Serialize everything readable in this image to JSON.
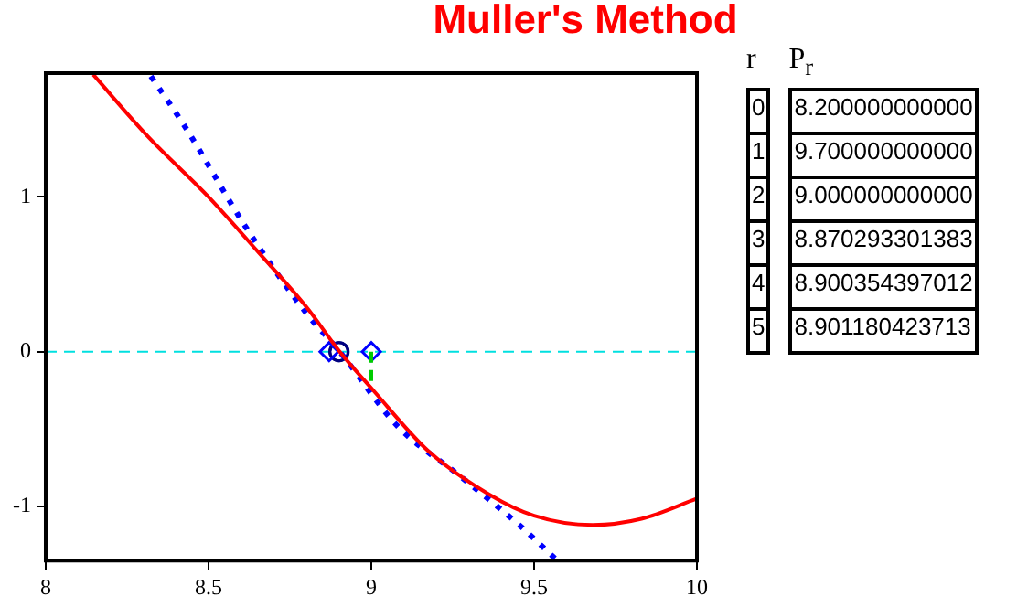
{
  "chart_data": {
    "type": "line",
    "title": "Muller's Method",
    "xlim": [
      8,
      10
    ],
    "ylim": [
      -1.35,
      1.8
    ],
    "xticks": [
      8,
      8.5,
      9,
      9.5,
      10
    ],
    "yticks": [
      -1,
      0,
      1
    ],
    "grid": false,
    "legend": false,
    "series": [
      {
        "type": "line",
        "color": "#ff0000",
        "line_style": "solid",
        "marker": "none",
        "x": [
          8.146,
          8.314,
          8.5,
          8.65,
          8.8,
          8.903,
          9.006,
          9.174,
          9.36,
          9.5,
          9.68,
          9.83,
          10
        ],
        "values": [
          1.79,
          1.39,
          1.0,
          0.65,
          0.29,
          0,
          -0.25,
          -0.64,
          -0.92,
          -1.06,
          -1.12,
          -1.08,
          -0.95
        ]
      },
      {
        "type": "line",
        "color": "#0000ff",
        "line_style": "dotted",
        "marker": "none",
        "x": [
          8.323,
          8.426,
          8.613,
          8.8,
          8.903,
          9.08,
          9.27,
          9.454,
          9.566
        ],
        "values": [
          1.78,
          1.46,
          0.81,
          0.25,
          0,
          -0.48,
          -0.8,
          -1.12,
          -1.34
        ]
      },
      {
        "type": "line",
        "color": "#00cc00",
        "line_style": "dashed",
        "marker": "none",
        "x": [
          9,
          9
        ],
        "values": [
          0,
          -0.22
        ]
      },
      {
        "type": "scatter",
        "color": "#0000ff",
        "marker": "diamond",
        "x": [
          9.0,
          8.870293301383
        ],
        "values": [
          0,
          0
        ]
      },
      {
        "type": "scatter",
        "color": "#000080",
        "marker": "circle",
        "x": [
          8.900354397012,
          8.901180423713
        ],
        "values": [
          0,
          0
        ]
      }
    ],
    "ref_lines": [
      {
        "axis": "y",
        "value": 0,
        "color": "#00e0e0",
        "line_style": "dashed"
      }
    ],
    "annotations": [
      "r",
      "P$_{r}$",
      "0",
      "8.200000000000",
      "1",
      "9.700000000000",
      "2",
      "9.000000000000",
      "3",
      "8.870293301383",
      "4",
      "8.900354397012",
      "5",
      "8.901180423713"
    ]
  }
}
